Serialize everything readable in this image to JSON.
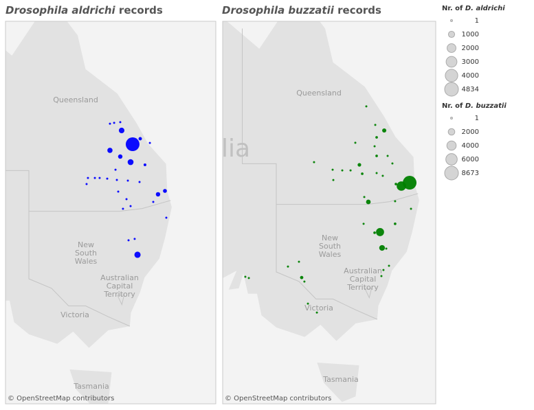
{
  "maps": [
    {
      "title_species": "Drosophila aldrichi",
      "title_suffix": "records",
      "attribution": "© OpenStreetMap contributors",
      "color": "#0000ff",
      "points": [
        {
          "lon": 150.15,
          "lat": -24.05,
          "count": 4834
        },
        {
          "lon": 149.18,
          "lat": -23.03,
          "count": 800
        },
        {
          "lon": 148.15,
          "lat": -24.5,
          "count": 700
        },
        {
          "lon": 149.06,
          "lat": -24.96,
          "count": 500
        },
        {
          "lon": 149.97,
          "lat": -25.37,
          "count": 900
        },
        {
          "lon": 150.82,
          "lat": -23.64,
          "count": 300
        },
        {
          "lon": 151.67,
          "lat": -23.95,
          "count": 50
        },
        {
          "lon": 151.24,
          "lat": -25.57,
          "count": 200
        },
        {
          "lon": 148.15,
          "lat": -22.53,
          "count": 50
        },
        {
          "lon": 148.52,
          "lat": -22.47,
          "count": 20
        },
        {
          "lon": 149.06,
          "lat": -22.42,
          "count": 30
        },
        {
          "lon": 148.64,
          "lat": -25.93,
          "count": 30
        },
        {
          "lon": 147.91,
          "lat": -26.59,
          "count": 30
        },
        {
          "lon": 147.24,
          "lat": -26.54,
          "count": 20
        },
        {
          "lon": 146.82,
          "lat": -26.54,
          "count": 20
        },
        {
          "lon": 146.21,
          "lat": -26.54,
          "count": 20
        },
        {
          "lon": 146.09,
          "lat": -26.99,
          "count": 10
        },
        {
          "lon": 148.76,
          "lat": -26.69,
          "count": 50
        },
        {
          "lon": 149.73,
          "lat": -26.74,
          "count": 20
        },
        {
          "lon": 150.76,
          "lat": -26.84,
          "count": 10
        },
        {
          "lon": 152.39,
          "lat": -27.75,
          "count": 500
        },
        {
          "lon": 153.0,
          "lat": -27.5,
          "count": 400
        },
        {
          "lon": 148.88,
          "lat": -27.55,
          "count": 10
        },
        {
          "lon": 149.61,
          "lat": -28.11,
          "count": 10
        },
        {
          "lon": 149.3,
          "lat": -28.82,
          "count": 20
        },
        {
          "lon": 151.97,
          "lat": -28.31,
          "count": 10
        },
        {
          "lon": 149.97,
          "lat": -28.62,
          "count": 10
        },
        {
          "lon": 153.12,
          "lat": -29.48,
          "count": 10
        },
        {
          "lon": 149.79,
          "lat": -31.15,
          "count": 20
        },
        {
          "lon": 150.33,
          "lat": -31.05,
          "count": 10
        },
        {
          "lon": 150.58,
          "lat": -32.22,
          "count": 1000
        }
      ]
    },
    {
      "title_species": "Drosophila buzzatii",
      "title_suffix": "records",
      "attribution": "© OpenStreetMap contributors",
      "color": "#008000",
      "points": [
        {
          "lon": 152.76,
          "lat": -27.4,
          "count": 8673
        },
        {
          "lon": 152.03,
          "lat": -27.65,
          "count": 4000
        },
        {
          "lon": 151.55,
          "lat": -27.5,
          "count": 300
        },
        {
          "lon": 150.15,
          "lat": -31.05,
          "count": 3000
        },
        {
          "lon": 149.67,
          "lat": -31.1,
          "count": 300
        },
        {
          "lon": 150.33,
          "lat": -32.22,
          "count": 1500
        },
        {
          "lon": 149.12,
          "lat": -28.82,
          "count": 1000
        },
        {
          "lon": 150.52,
          "lat": -23.54,
          "count": 800
        },
        {
          "lon": 148.76,
          "lat": -28.46,
          "count": 200
        },
        {
          "lon": 149.85,
          "lat": -24.05,
          "count": 300
        },
        {
          "lon": 149.85,
          "lat": -25.42,
          "count": 300
        },
        {
          "lon": 149.67,
          "lat": -24.71,
          "count": 200
        },
        {
          "lon": 148.33,
          "lat": -26.08,
          "count": 600
        },
        {
          "lon": 148.58,
          "lat": -26.74,
          "count": 300
        },
        {
          "lon": 147.55,
          "lat": -26.49,
          "count": 200
        },
        {
          "lon": 146.82,
          "lat": -26.49,
          "count": 30
        },
        {
          "lon": 145.97,
          "lat": -26.44,
          "count": 30
        },
        {
          "lon": 146.03,
          "lat": -27.2,
          "count": 20
        },
        {
          "lon": 144.33,
          "lat": -25.88,
          "count": 10
        },
        {
          "lon": 148.94,
          "lat": -21.76,
          "count": 10
        },
        {
          "lon": 149.73,
          "lat": -23.13,
          "count": 20
        },
        {
          "lon": 147.97,
          "lat": -24.45,
          "count": 20
        },
        {
          "lon": 150.82,
          "lat": -25.42,
          "count": 20
        },
        {
          "lon": 151.24,
          "lat": -25.98,
          "count": 30
        },
        {
          "lon": 149.85,
          "lat": -26.69,
          "count": 50
        },
        {
          "lon": 150.39,
          "lat": -26.89,
          "count": 200
        },
        {
          "lon": 151.48,
          "lat": -28.77,
          "count": 20
        },
        {
          "lon": 152.88,
          "lat": -29.33,
          "count": 200
        },
        {
          "lon": 148.7,
          "lat": -30.44,
          "count": 100
        },
        {
          "lon": 151.48,
          "lat": -30.44,
          "count": 300
        },
        {
          "lon": 150.7,
          "lat": -32.27,
          "count": 20
        },
        {
          "lon": 150.94,
          "lat": -33.54,
          "count": 20
        },
        {
          "lon": 150.45,
          "lat": -33.85,
          "count": 100
        },
        {
          "lon": 150.27,
          "lat": -34.3,
          "count": 30
        },
        {
          "lon": 142.03,
          "lat": -33.6,
          "count": 200
        },
        {
          "lon": 143.24,
          "lat": -34.41,
          "count": 500
        },
        {
          "lon": 143.48,
          "lat": -34.71,
          "count": 100
        },
        {
          "lon": 143.0,
          "lat": -33.24,
          "count": 20
        },
        {
          "lon": 138.27,
          "lat": -34.35,
          "count": 10
        },
        {
          "lon": 138.58,
          "lat": -34.45,
          "count": 10
        },
        {
          "lon": 143.79,
          "lat": -36.34,
          "count": 30
        },
        {
          "lon": 144.58,
          "lat": -37.0,
          "count": 30
        }
      ]
    }
  ],
  "map_labels": {
    "queensland": "Queensland",
    "new_south_wales": [
      "New",
      "South",
      "Wales"
    ],
    "act": [
      "Australian",
      "Capital",
      "Territory"
    ],
    "victoria": "Victoria",
    "tasmania": "Tasmania",
    "australia_fragment": "lia"
  },
  "legends": [
    {
      "prefix": "Nr. of",
      "species": "D. aldrichi",
      "entries": [
        1,
        1000,
        2000,
        3000,
        4000,
        4834
      ]
    },
    {
      "prefix": "Nr. of",
      "species": "D. buzzatii",
      "entries": [
        1,
        2000,
        4000,
        6000,
        8673
      ]
    }
  ]
}
